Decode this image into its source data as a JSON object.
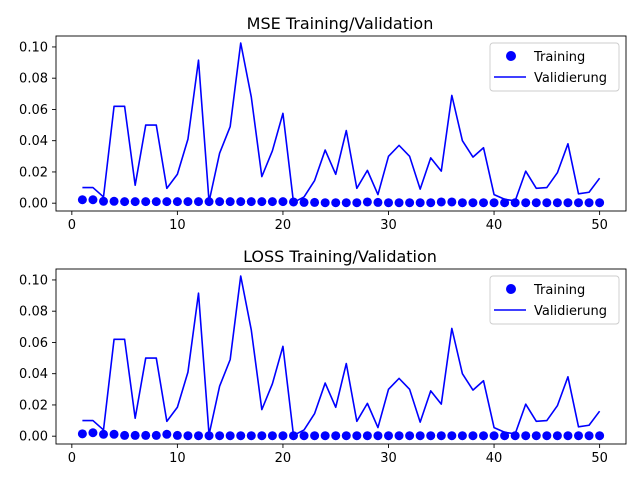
{
  "colors": {
    "series": "#0000ff",
    "axis": "#000000",
    "background": "#ffffff",
    "legend_border": "#cccccc"
  },
  "chart_data": [
    {
      "type": "line",
      "title": "MSE Training/Validation",
      "xlabel": "",
      "ylabel": "",
      "xlim": [
        -1.5,
        52.5
      ],
      "ylim": [
        -0.005,
        0.107
      ],
      "xticks": [
        0,
        10,
        20,
        30,
        40,
        50
      ],
      "xtick_labels": [
        "0",
        "10",
        "20",
        "30",
        "40",
        "50"
      ],
      "yticks": [
        0.0,
        0.02,
        0.04,
        0.06,
        0.08,
        0.1
      ],
      "ytick_labels": [
        "0.00",
        "0.02",
        "0.04",
        "0.06",
        "0.08",
        "0.10"
      ],
      "grid": false,
      "legend_position": "top-right",
      "x": [
        1,
        2,
        3,
        4,
        5,
        6,
        7,
        8,
        9,
        10,
        11,
        12,
        13,
        14,
        15,
        16,
        17,
        18,
        19,
        20,
        21,
        22,
        23,
        24,
        25,
        26,
        27,
        28,
        29,
        30,
        31,
        32,
        33,
        34,
        35,
        36,
        37,
        38,
        39,
        40,
        41,
        42,
        43,
        44,
        45,
        46,
        47,
        48,
        49,
        50
      ],
      "series": [
        {
          "name": "Training",
          "style": "markers",
          "values": [
            0.0022,
            0.0022,
            0.0012,
            0.0012,
            0.001,
            0.001,
            0.001,
            0.001,
            0.001,
            0.001,
            0.001,
            0.001,
            0.001,
            0.001,
            0.001,
            0.001,
            0.001,
            0.001,
            0.001,
            0.001,
            0.0008,
            0.0005,
            0.0005,
            0.0003,
            0.0003,
            0.0003,
            0.0003,
            0.0008,
            0.0005,
            0.0003,
            0.0003,
            0.0003,
            0.0003,
            0.0003,
            0.0008,
            0.0008,
            0.0003,
            0.0003,
            0.0003,
            0.0003,
            0.0003,
            0.0003,
            0.0003,
            0.0003,
            0.0003,
            0.0003,
            0.0003,
            0.0003,
            0.0003,
            0.0003
          ]
        },
        {
          "name": "Validierung",
          "style": "line",
          "values": [
            0.01,
            0.01,
            0.004,
            0.062,
            0.062,
            0.0115,
            0.05,
            0.05,
            0.0095,
            0.0185,
            0.041,
            0.0915,
            0.001,
            0.032,
            0.049,
            0.1025,
            0.068,
            0.017,
            0.0335,
            0.0575,
            0.0005,
            0.004,
            0.0145,
            0.034,
            0.0185,
            0.0465,
            0.0095,
            0.021,
            0.0055,
            0.03,
            0.037,
            0.03,
            0.009,
            0.029,
            0.0205,
            0.069,
            0.04,
            0.0295,
            0.0355,
            0.0055,
            0.0025,
            0.0015,
            0.0205,
            0.0095,
            0.01,
            0.0195,
            0.038,
            0.006,
            0.007,
            0.016
          ]
        }
      ]
    },
    {
      "type": "line",
      "title": "LOSS Training/Validation",
      "xlabel": "",
      "ylabel": "",
      "xlim": [
        -1.5,
        52.5
      ],
      "ylim": [
        -0.005,
        0.107
      ],
      "xticks": [
        0,
        10,
        20,
        30,
        40,
        50
      ],
      "xtick_labels": [
        "0",
        "10",
        "20",
        "30",
        "40",
        "50"
      ],
      "yticks": [
        0.0,
        0.02,
        0.04,
        0.06,
        0.08,
        0.1
      ],
      "ytick_labels": [
        "0.00",
        "0.02",
        "0.04",
        "0.06",
        "0.08",
        "0.10"
      ],
      "grid": false,
      "legend_position": "top-right",
      "x": [
        1,
        2,
        3,
        4,
        5,
        6,
        7,
        8,
        9,
        10,
        11,
        12,
        13,
        14,
        15,
        16,
        17,
        18,
        19,
        20,
        21,
        22,
        23,
        24,
        25,
        26,
        27,
        28,
        29,
        30,
        31,
        32,
        33,
        34,
        35,
        36,
        37,
        38,
        39,
        40,
        41,
        42,
        43,
        44,
        45,
        46,
        47,
        48,
        49,
        50
      ],
      "series": [
        {
          "name": "Training",
          "style": "markers",
          "values": [
            0.0015,
            0.0022,
            0.0012,
            0.0012,
            0.0005,
            0.0005,
            0.0005,
            0.0005,
            0.0012,
            0.0005,
            0.0003,
            0.0003,
            0.0003,
            0.0003,
            0.0003,
            0.0003,
            0.0003,
            0.0003,
            0.0003,
            0.0003,
            0.0003,
            0.0003,
            0.0003,
            0.0003,
            0.0003,
            0.0003,
            0.0003,
            0.0003,
            0.0003,
            0.0003,
            0.0003,
            0.0003,
            0.0003,
            0.0003,
            0.0003,
            0.0003,
            0.0003,
            0.0003,
            0.0003,
            0.0003,
            0.0003,
            0.0003,
            0.0003,
            0.0003,
            0.0003,
            0.0003,
            0.0003,
            0.0003,
            0.0003,
            0.0003
          ]
        },
        {
          "name": "Validierung",
          "style": "line",
          "values": [
            0.01,
            0.01,
            0.004,
            0.062,
            0.062,
            0.0115,
            0.05,
            0.05,
            0.0095,
            0.0185,
            0.041,
            0.0915,
            0.001,
            0.032,
            0.049,
            0.1025,
            0.068,
            0.017,
            0.0335,
            0.0575,
            0.0005,
            0.004,
            0.0145,
            0.034,
            0.0185,
            0.0465,
            0.0095,
            0.021,
            0.0055,
            0.03,
            0.037,
            0.03,
            0.009,
            0.029,
            0.0205,
            0.069,
            0.04,
            0.0295,
            0.0355,
            0.0055,
            0.0025,
            0.0015,
            0.0205,
            0.0095,
            0.01,
            0.0195,
            0.038,
            0.006,
            0.007,
            0.016
          ]
        }
      ]
    }
  ]
}
